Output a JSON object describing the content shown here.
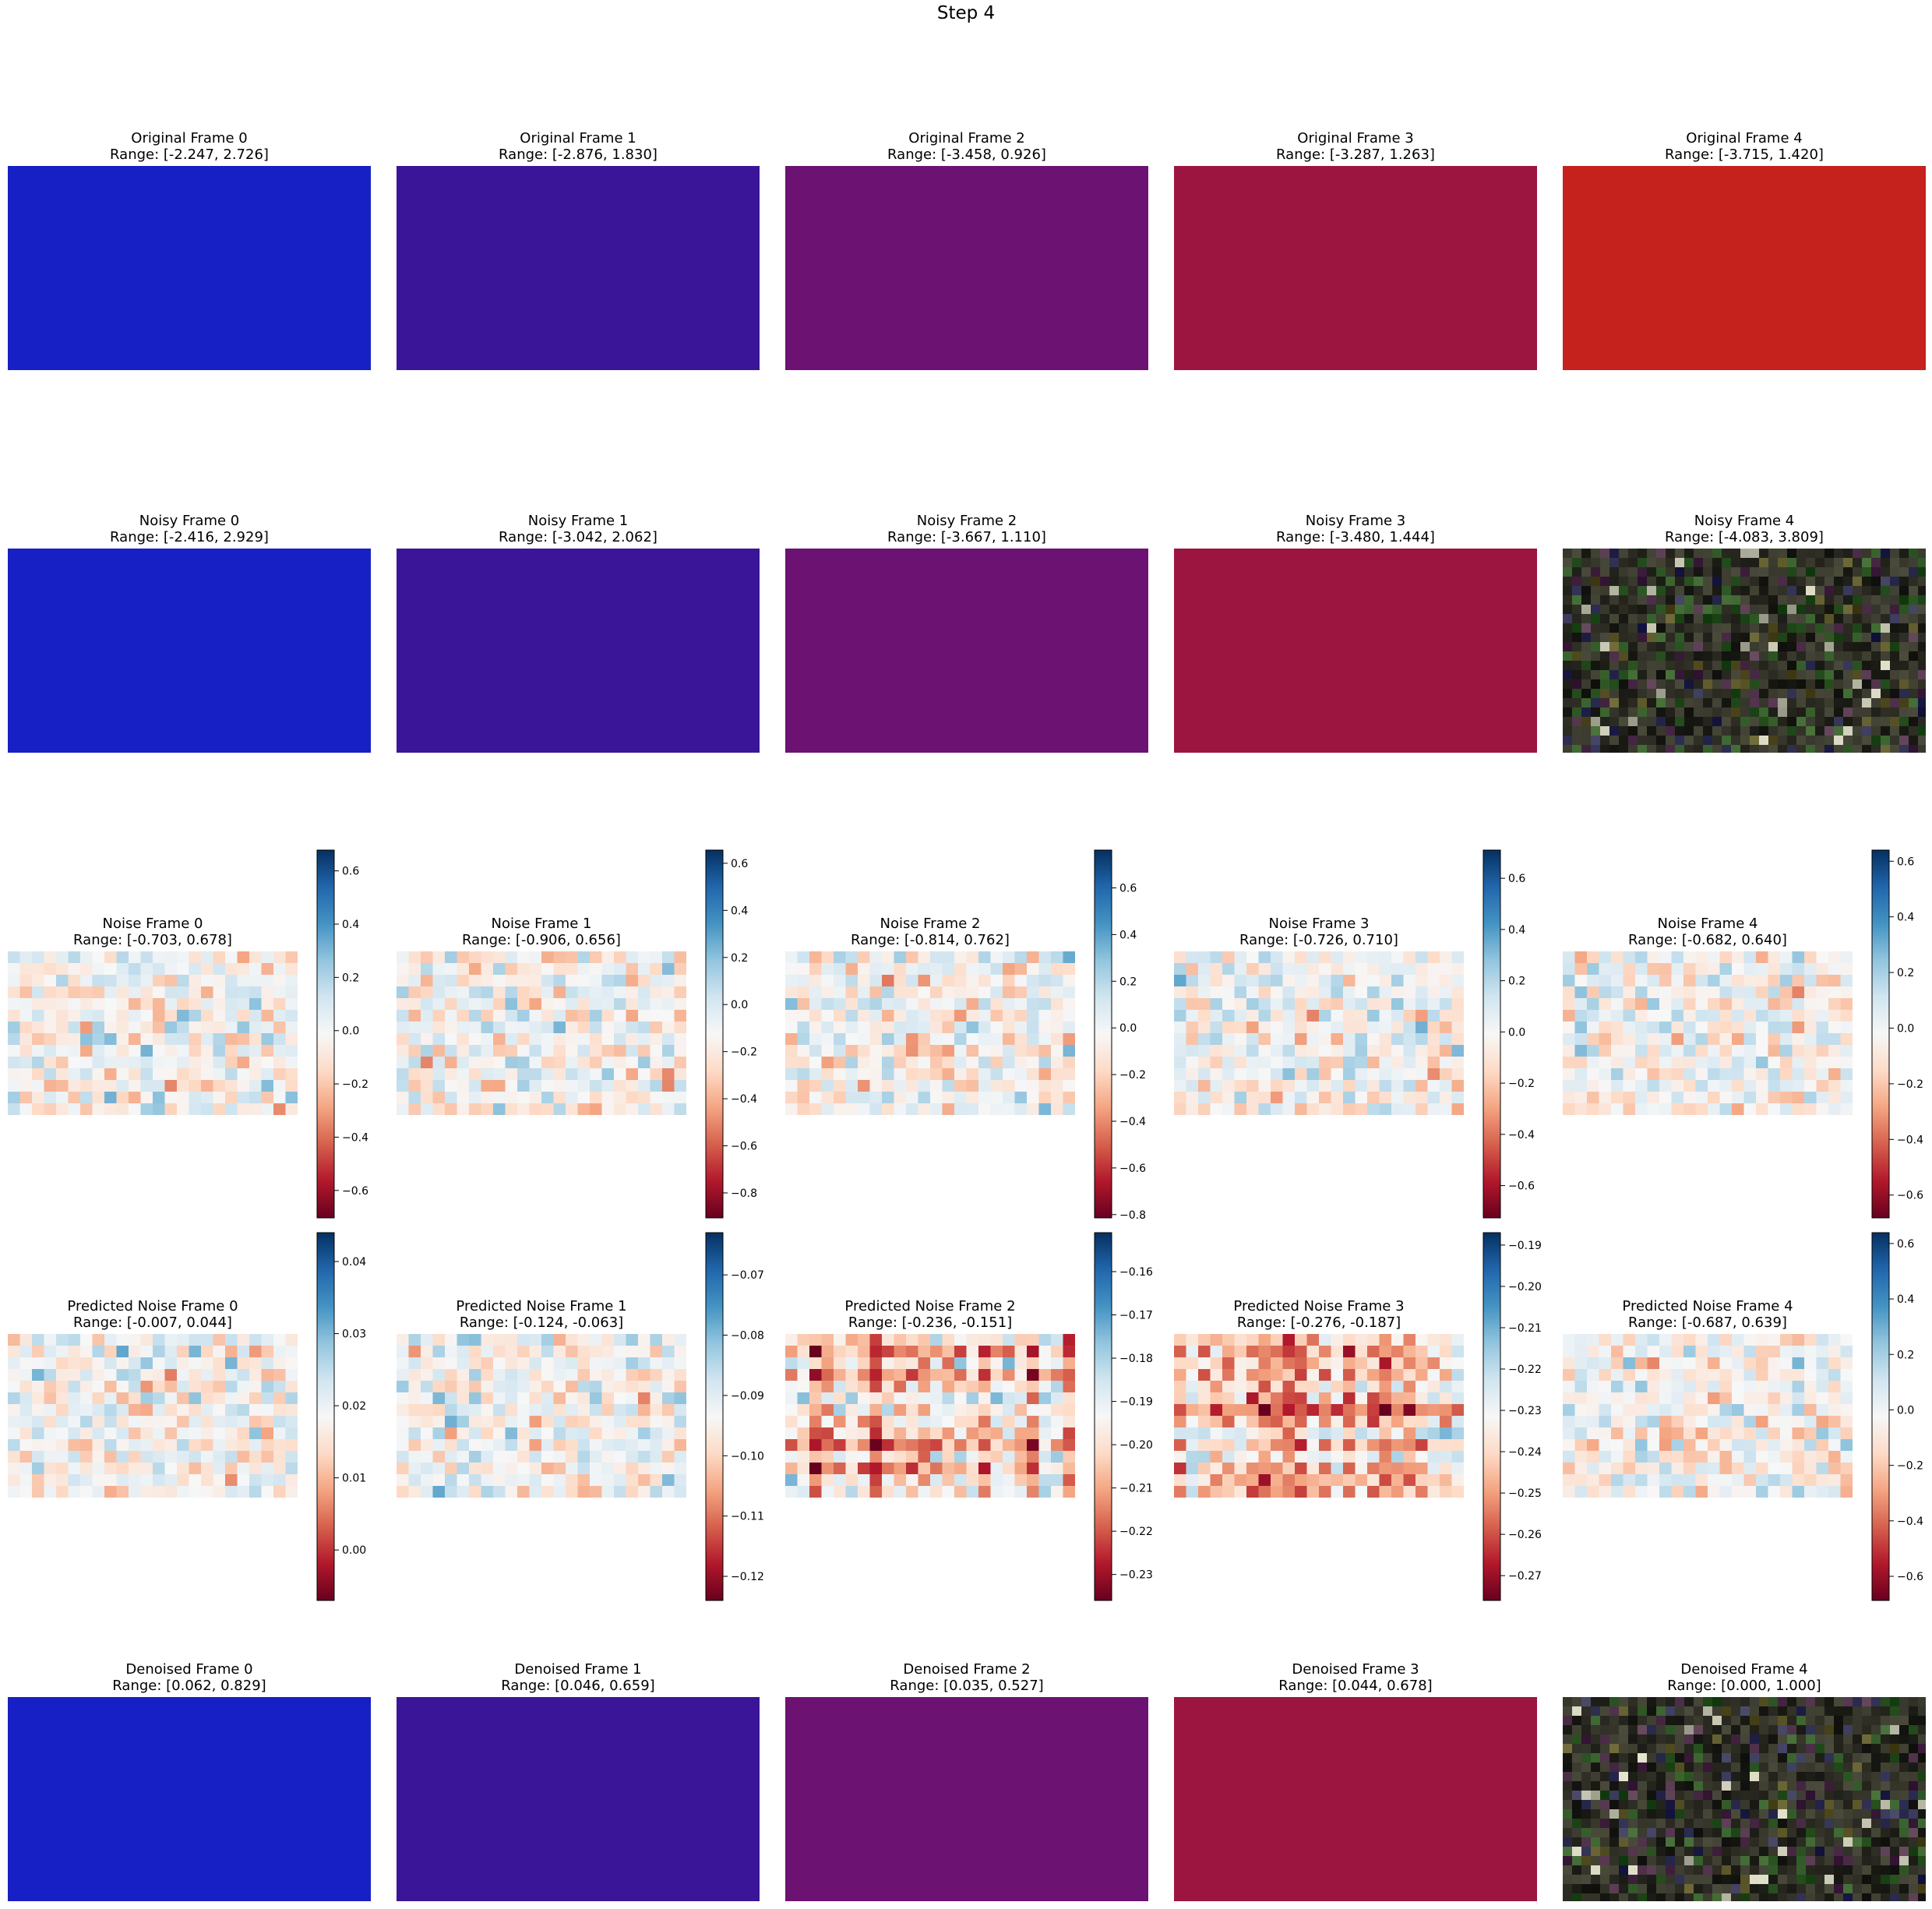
{
  "figure": {
    "title": "Step 4"
  },
  "chart_data": [
    {
      "type": "image",
      "row": "original",
      "column": 0,
      "title": "Original Frame 0",
      "range_text": "Range: [-2.247, 2.726]",
      "range": [
        -2.247,
        2.726
      ],
      "color": "#1620c4"
    },
    {
      "type": "image",
      "row": "original",
      "column": 1,
      "title": "Original Frame 1",
      "range_text": "Range: [-2.876, 1.830]",
      "range": [
        -2.876,
        1.83
      ],
      "color": "#3b1597"
    },
    {
      "type": "image",
      "row": "original",
      "column": 2,
      "title": "Original Frame 2",
      "range_text": "Range: [-3.458, 0.926]",
      "range": [
        -3.458,
        0.926
      ],
      "color": "#6c1273"
    },
    {
      "type": "image",
      "row": "original",
      "column": 3,
      "title": "Original Frame 3",
      "range_text": "Range: [-3.287, 1.263]",
      "range": [
        -3.287,
        1.263
      ],
      "color": "#9c1541"
    },
    {
      "type": "image",
      "row": "original",
      "column": 4,
      "title": "Original Frame 4",
      "range_text": "Range: [-3.715, 1.420]",
      "range": [
        -3.715,
        1.42
      ],
      "color": "#c5211d"
    },
    {
      "type": "image",
      "row": "noisy",
      "column": 0,
      "title": "Noisy Frame 0",
      "range_text": "Range: [-2.416, 2.929]",
      "range": [
        -2.416,
        2.929
      ],
      "color": "#1620c4"
    },
    {
      "type": "image",
      "row": "noisy",
      "column": 1,
      "title": "Noisy Frame 1",
      "range_text": "Range: [-3.042, 2.062]",
      "range": [
        -3.042,
        2.062
      ],
      "color": "#3b1597"
    },
    {
      "type": "image",
      "row": "noisy",
      "column": 2,
      "title": "Noisy Frame 2",
      "range_text": "Range: [-3.667, 1.110]",
      "range": [
        -3.667,
        1.11
      ],
      "color": "#6c1273"
    },
    {
      "type": "image",
      "row": "noisy",
      "column": 3,
      "title": "Noisy Frame 3",
      "range_text": "Range: [-3.480, 1.444]",
      "range": [
        -3.48,
        1.444
      ],
      "color": "#9c1541"
    },
    {
      "type": "image",
      "row": "noisy",
      "column": 4,
      "title": "Noisy Frame 4",
      "range_text": "Range: [-4.083, 3.809]",
      "range": [
        -4.083,
        3.809
      ],
      "color": "noise"
    },
    {
      "type": "heatmap",
      "row": "noise",
      "column": 0,
      "title": "Noise Frame 0",
      "range_text": "Range: [-0.703, 0.678]",
      "vmin": -0.703,
      "vmax": 0.678,
      "colormap": "RdBu",
      "colorbar_ticks": [
        "0.6",
        "0.4",
        "0.2",
        "0.0",
        "−0.2",
        "−0.4",
        "−0.6"
      ],
      "colorbar_tick_values": [
        0.6,
        0.4,
        0.2,
        0.0,
        -0.2,
        -0.4,
        -0.6
      ]
    },
    {
      "type": "heatmap",
      "row": "noise",
      "column": 1,
      "title": "Noise Frame 1",
      "range_text": "Range: [-0.906, 0.656]",
      "vmin": -0.906,
      "vmax": 0.656,
      "colormap": "RdBu",
      "colorbar_ticks": [
        "0.6",
        "0.4",
        "0.2",
        "0.0",
        "−0.2",
        "−0.4",
        "−0.6",
        "−0.8"
      ],
      "colorbar_tick_values": [
        0.6,
        0.4,
        0.2,
        0.0,
        -0.2,
        -0.4,
        -0.6,
        -0.8
      ]
    },
    {
      "type": "heatmap",
      "row": "noise",
      "column": 2,
      "title": "Noise Frame 2",
      "range_text": "Range: [-0.814, 0.762]",
      "vmin": -0.814,
      "vmax": 0.762,
      "colormap": "RdBu",
      "colorbar_ticks": [
        "0.6",
        "0.4",
        "0.2",
        "0.0",
        "−0.2",
        "−0.4",
        "−0.6",
        "−0.8"
      ],
      "colorbar_tick_values": [
        0.6,
        0.4,
        0.2,
        0.0,
        -0.2,
        -0.4,
        -0.6,
        -0.8
      ]
    },
    {
      "type": "heatmap",
      "row": "noise",
      "column": 3,
      "title": "Noise Frame 3",
      "range_text": "Range: [-0.726, 0.710]",
      "vmin": -0.726,
      "vmax": 0.71,
      "colormap": "RdBu",
      "colorbar_ticks": [
        "0.6",
        "0.4",
        "0.2",
        "0.0",
        "−0.2",
        "−0.4",
        "−0.6"
      ],
      "colorbar_tick_values": [
        0.6,
        0.4,
        0.2,
        0.0,
        -0.2,
        -0.4,
        -0.6
      ]
    },
    {
      "type": "heatmap",
      "row": "noise",
      "column": 4,
      "title": "Noise Frame 4",
      "range_text": "Range: [-0.682, 0.640]",
      "vmin": -0.682,
      "vmax": 0.64,
      "colormap": "RdBu",
      "colorbar_ticks": [
        "0.6",
        "0.4",
        "0.2",
        "0.0",
        "−0.2",
        "−0.4",
        "−0.6"
      ],
      "colorbar_tick_values": [
        0.6,
        0.4,
        0.2,
        0.0,
        -0.2,
        -0.4,
        -0.6
      ]
    },
    {
      "type": "heatmap",
      "row": "predicted",
      "column": 0,
      "title": "Predicted Noise Frame 0",
      "range_text": "Range: [-0.007, 0.044]",
      "vmin": -0.007,
      "vmax": 0.044,
      "colormap": "RdBu",
      "colorbar_ticks": [
        "0.04",
        "0.03",
        "0.02",
        "0.01",
        "0.00"
      ],
      "colorbar_tick_values": [
        0.04,
        0.03,
        0.02,
        0.01,
        0.0
      ]
    },
    {
      "type": "heatmap",
      "row": "predicted",
      "column": 1,
      "title": "Predicted Noise Frame 1",
      "range_text": "Range: [-0.124, -0.063]",
      "vmin": -0.124,
      "vmax": -0.063,
      "colormap": "RdBu",
      "colorbar_ticks": [
        "−0.07",
        "−0.08",
        "−0.09",
        "−0.10",
        "−0.11",
        "−0.12"
      ],
      "colorbar_tick_values": [
        -0.07,
        -0.08,
        -0.09,
        -0.1,
        -0.11,
        -0.12
      ]
    },
    {
      "type": "heatmap",
      "row": "predicted",
      "column": 2,
      "title": "Predicted Noise Frame 2",
      "range_text": "Range: [-0.236, -0.151]",
      "vmin": -0.236,
      "vmax": -0.151,
      "colormap": "RdBu",
      "pattern": "checker",
      "colorbar_ticks": [
        "−0.16",
        "−0.17",
        "−0.18",
        "−0.19",
        "−0.20",
        "−0.21",
        "−0.22",
        "−0.23"
      ],
      "colorbar_tick_values": [
        -0.16,
        -0.17,
        -0.18,
        -0.19,
        -0.2,
        -0.21,
        -0.22,
        -0.23
      ]
    },
    {
      "type": "heatmap",
      "row": "predicted",
      "column": 3,
      "title": "Predicted Noise Frame 3",
      "range_text": "Range: [-0.276, -0.187]",
      "vmin": -0.276,
      "vmax": -0.187,
      "colormap": "RdBu",
      "pattern": "checker",
      "colorbar_ticks": [
        "−0.19",
        "−0.20",
        "−0.21",
        "−0.22",
        "−0.23",
        "−0.24",
        "−0.25",
        "−0.26",
        "−0.27"
      ],
      "colorbar_tick_values": [
        -0.19,
        -0.2,
        -0.21,
        -0.22,
        -0.23,
        -0.24,
        -0.25,
        -0.26,
        -0.27
      ]
    },
    {
      "type": "heatmap",
      "row": "predicted",
      "column": 4,
      "title": "Predicted Noise Frame 4",
      "range_text": "Range: [-0.687, 0.639]",
      "vmin": -0.687,
      "vmax": 0.639,
      "colormap": "RdBu",
      "colorbar_ticks": [
        "0.6",
        "0.4",
        "0.2",
        "0.0",
        "−0.2",
        "−0.4",
        "−0.6"
      ],
      "colorbar_tick_values": [
        0.6,
        0.4,
        0.2,
        0.0,
        -0.2,
        -0.4,
        -0.6
      ]
    },
    {
      "type": "image",
      "row": "denoised",
      "column": 0,
      "title": "Denoised Frame 0",
      "range_text": "Range: [0.062, 0.829]",
      "range": [
        0.062,
        0.829
      ],
      "color": "#1620c4"
    },
    {
      "type": "image",
      "row": "denoised",
      "column": 1,
      "title": "Denoised Frame 1",
      "range_text": "Range: [0.046, 0.659]",
      "range": [
        0.046,
        0.659
      ],
      "color": "#3b1597"
    },
    {
      "type": "image",
      "row": "denoised",
      "column": 2,
      "title": "Denoised Frame 2",
      "range_text": "Range: [0.035, 0.527]",
      "range": [
        0.035,
        0.527
      ],
      "color": "#6c1273"
    },
    {
      "type": "image",
      "row": "denoised",
      "column": 3,
      "title": "Denoised Frame 3",
      "range_text": "Range: [0.044, 0.678]",
      "range": [
        0.044,
        0.678
      ],
      "color": "#9c1541"
    },
    {
      "type": "image",
      "row": "denoised",
      "column": 4,
      "title": "Denoised Frame 4",
      "range_text": "Range: [0.000, 1.000]",
      "range": [
        0.0,
        1.0
      ],
      "color": "noise"
    }
  ]
}
